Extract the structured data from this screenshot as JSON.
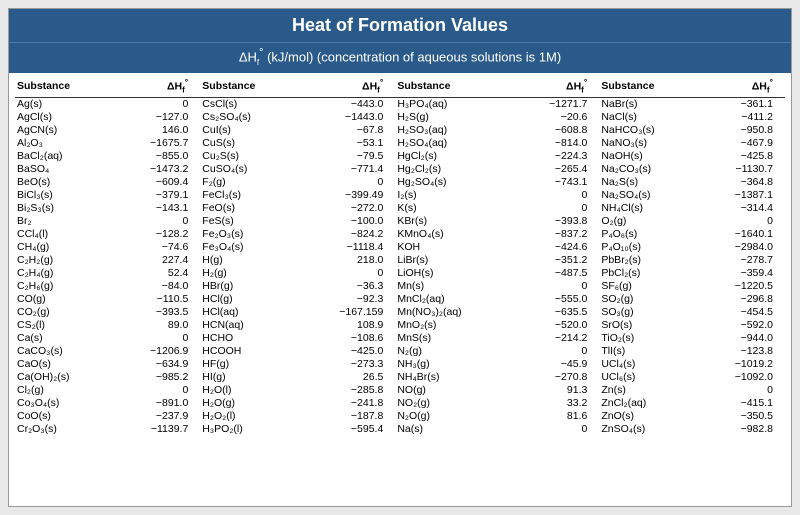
{
  "title": "Heat of Formation Values",
  "subtitle_prefix": "ΔH",
  "subtitle_suffix": " (kJ/mol) (concentration of aqueous solutions is 1M)",
  "colors": {
    "header_bg": "#2a5a8a",
    "header_text": "#ffffff",
    "page_bg": "#e8e8e8",
    "border": "#999999",
    "row_border": "#333333"
  },
  "header_substance": "Substance",
  "header_value_prefix": "ΔH",
  "rows": [
    {
      "s1": "Ag(s)",
      "v1": "0",
      "s2": "CsCl(s)",
      "v2": "−443.0",
      "s3": "H₃PO₄(aq)",
      "v3": "−1271.7",
      "s4": "NaBr(s)",
      "v4": "−361.1"
    },
    {
      "s1": "AgCl(s)",
      "v1": "−127.0",
      "s2": "Cs₂SO₄(s)",
      "v2": "−1443.0",
      "s3": "H₂S(g)",
      "v3": "−20.6",
      "s4": "NaCl(s)",
      "v4": "−411.2"
    },
    {
      "s1": "AgCN(s)",
      "v1": "146.0",
      "s2": "CuI(s)",
      "v2": "−67.8",
      "s3": "H₂SO₃(aq)",
      "v3": "−608.8",
      "s4": "NaHCO₃(s)",
      "v4": "−950.8"
    },
    {
      "s1": "Al₂O₃",
      "v1": "−1675.7",
      "s2": "CuS(s)",
      "v2": "−53.1",
      "s3": "H₂SO₄(aq)",
      "v3": "−814.0",
      "s4": "NaNO₃(s)",
      "v4": "−467.9"
    },
    {
      "s1": "BaCl₂(aq)",
      "v1": "−855.0",
      "s2": "Cu₂S(s)",
      "v2": "−79.5",
      "s3": "HgCl₂(s)",
      "v3": "−224.3",
      "s4": "NaOH(s)",
      "v4": "−425.8"
    },
    {
      "s1": "BaSO₄",
      "v1": "−1473.2",
      "s2": "CuSO₄(s)",
      "v2": "−771.4",
      "s3": "Hg₂Cl₂(s)",
      "v3": "−265.4",
      "s4": "Na₂CO₃(s)",
      "v4": "−1130.7"
    },
    {
      "s1": "BeO(s)",
      "v1": "−609.4",
      "s2": "F₂(g)",
      "v2": "0",
      "s3": "Hg₂SO₄(s)",
      "v3": "−743.1",
      "s4": "Na₂S(s)",
      "v4": "−364.8"
    },
    {
      "s1": "BiCl₃(s)",
      "v1": "−379.1",
      "s2": "FeCl₃(s)",
      "v2": "−399.49",
      "s3": "I₂(s)",
      "v3": "0",
      "s4": "Na₂SO₄(s)",
      "v4": "−1387.1"
    },
    {
      "s1": "Bi₂S₃(s)",
      "v1": "−143.1",
      "s2": "FeO(s)",
      "v2": "−272.0",
      "s3": "K(s)",
      "v3": "0",
      "s4": "NH₄Cl(s)",
      "v4": "−314.4"
    },
    {
      "s1": "Br₂",
      "v1": "0",
      "s2": "FeS(s)",
      "v2": "−100.0",
      "s3": "KBr(s)",
      "v3": "−393.8",
      "s4": "O₂(g)",
      "v4": "0"
    },
    {
      "s1": "CCl₄(l)",
      "v1": "−128.2",
      "s2": "Fe₂O₃(s)",
      "v2": "−824.2",
      "s3": "KMnO₄(s)",
      "v3": "−837.2",
      "s4": "P₄O₆(s)",
      "v4": "−1640.1"
    },
    {
      "s1": "CH₄(g)",
      "v1": "−74.6",
      "s2": "Fe₃O₄(s)",
      "v2": "−1118.4",
      "s3": "KOH",
      "v3": "−424.6",
      "s4": "P₄O₁₀(s)",
      "v4": "−2984.0"
    },
    {
      "s1": "C₂H₂(g)",
      "v1": "227.4",
      "s2": "H(g)",
      "v2": "218.0",
      "s3": "LiBr(s)",
      "v3": "−351.2",
      "s4": "PbBr₂(s)",
      "v4": "−278.7"
    },
    {
      "s1": "C₂H₄(g)",
      "v1": "52.4",
      "s2": "H₂(g)",
      "v2": "0",
      "s3": "LiOH(s)",
      "v3": "−487.5",
      "s4": "PbCl₂(s)",
      "v4": "−359.4"
    },
    {
      "s1": "C₂H₆(g)",
      "v1": "−84.0",
      "s2": "HBr(g)",
      "v2": "−36.3",
      "s3": "Mn(s)",
      "v3": "0",
      "s4": "SF₆(g)",
      "v4": "−1220.5"
    },
    {
      "s1": "CO(g)",
      "v1": "−110.5",
      "s2": "HCl(g)",
      "v2": "−92.3",
      "s3": "MnCl₂(aq)",
      "v3": "−555.0",
      "s4": "SO₂(g)",
      "v4": "−296.8"
    },
    {
      "s1": "CO₂(g)",
      "v1": "−393.5",
      "s2": "HCl(aq)",
      "v2": "−167.159",
      "s3": "Mn(NO₃)₂(aq)",
      "v3": "−635.5",
      "s4": "SO₃(g)",
      "v4": "−454.5"
    },
    {
      "s1": "CS₂(l)",
      "v1": "89.0",
      "s2": "HCN(aq)",
      "v2": "108.9",
      "s3": "MnO₂(s)",
      "v3": "−520.0",
      "s4": "SrO(s)",
      "v4": "−592.0"
    },
    {
      "s1": "Ca(s)",
      "v1": "0",
      "s2": "HCHO",
      "v2": "−108.6",
      "s3": "MnS(s)",
      "v3": "−214.2",
      "s4": "TiO₂(s)",
      "v4": "−944.0"
    },
    {
      "s1": "CaCO₃(s)",
      "v1": "−1206.9",
      "s2": "HCOOH",
      "v2": "−425.0",
      "s3": "N₂(g)",
      "v3": "0",
      "s4": "TlI(s)",
      "v4": "−123.8"
    },
    {
      "s1": "CaO(s)",
      "v1": "−634.9",
      "s2": "HF(g)",
      "v2": "−273.3",
      "s3": "NH₃(g)",
      "v3": "−45.9",
      "s4": "UCl₄(s)",
      "v4": "−1019.2"
    },
    {
      "s1": "Ca(OH)₂(s)",
      "v1": "−985.2",
      "s2": "HI(g)",
      "v2": "26.5",
      "s3": "NH₄Br(s)",
      "v3": "−270.8",
      "s4": "UCl₆(s)",
      "v4": "−1092.0"
    },
    {
      "s1": "Cl₂(g)",
      "v1": "0",
      "s2": "H₂O(l)",
      "v2": "−285.8",
      "s3": "NO(g)",
      "v3": "91.3",
      "s4": "Zn(s)",
      "v4": "0"
    },
    {
      "s1": "Co₃O₄(s)",
      "v1": "−891.0",
      "s2": "H₂O(g)",
      "v2": "−241.8",
      "s3": "NO₂(g)",
      "v3": "33.2",
      "s4": "ZnCl₂(aq)",
      "v4": "−415.1"
    },
    {
      "s1": "CoO(s)",
      "v1": "−237.9",
      "s2": "H₂O₂(l)",
      "v2": "−187.8",
      "s3": "N₂O(g)",
      "v3": "81.6",
      "s4": "ZnO(s)",
      "v4": "−350.5"
    },
    {
      "s1": "Cr₂O₃(s)",
      "v1": "−1139.7",
      "s2": "H₃PO₂(l)",
      "v2": "−595.4",
      "s3": "Na(s)",
      "v3": "0",
      "s4": "ZnSO₄(s)",
      "v4": "−982.8"
    }
  ]
}
